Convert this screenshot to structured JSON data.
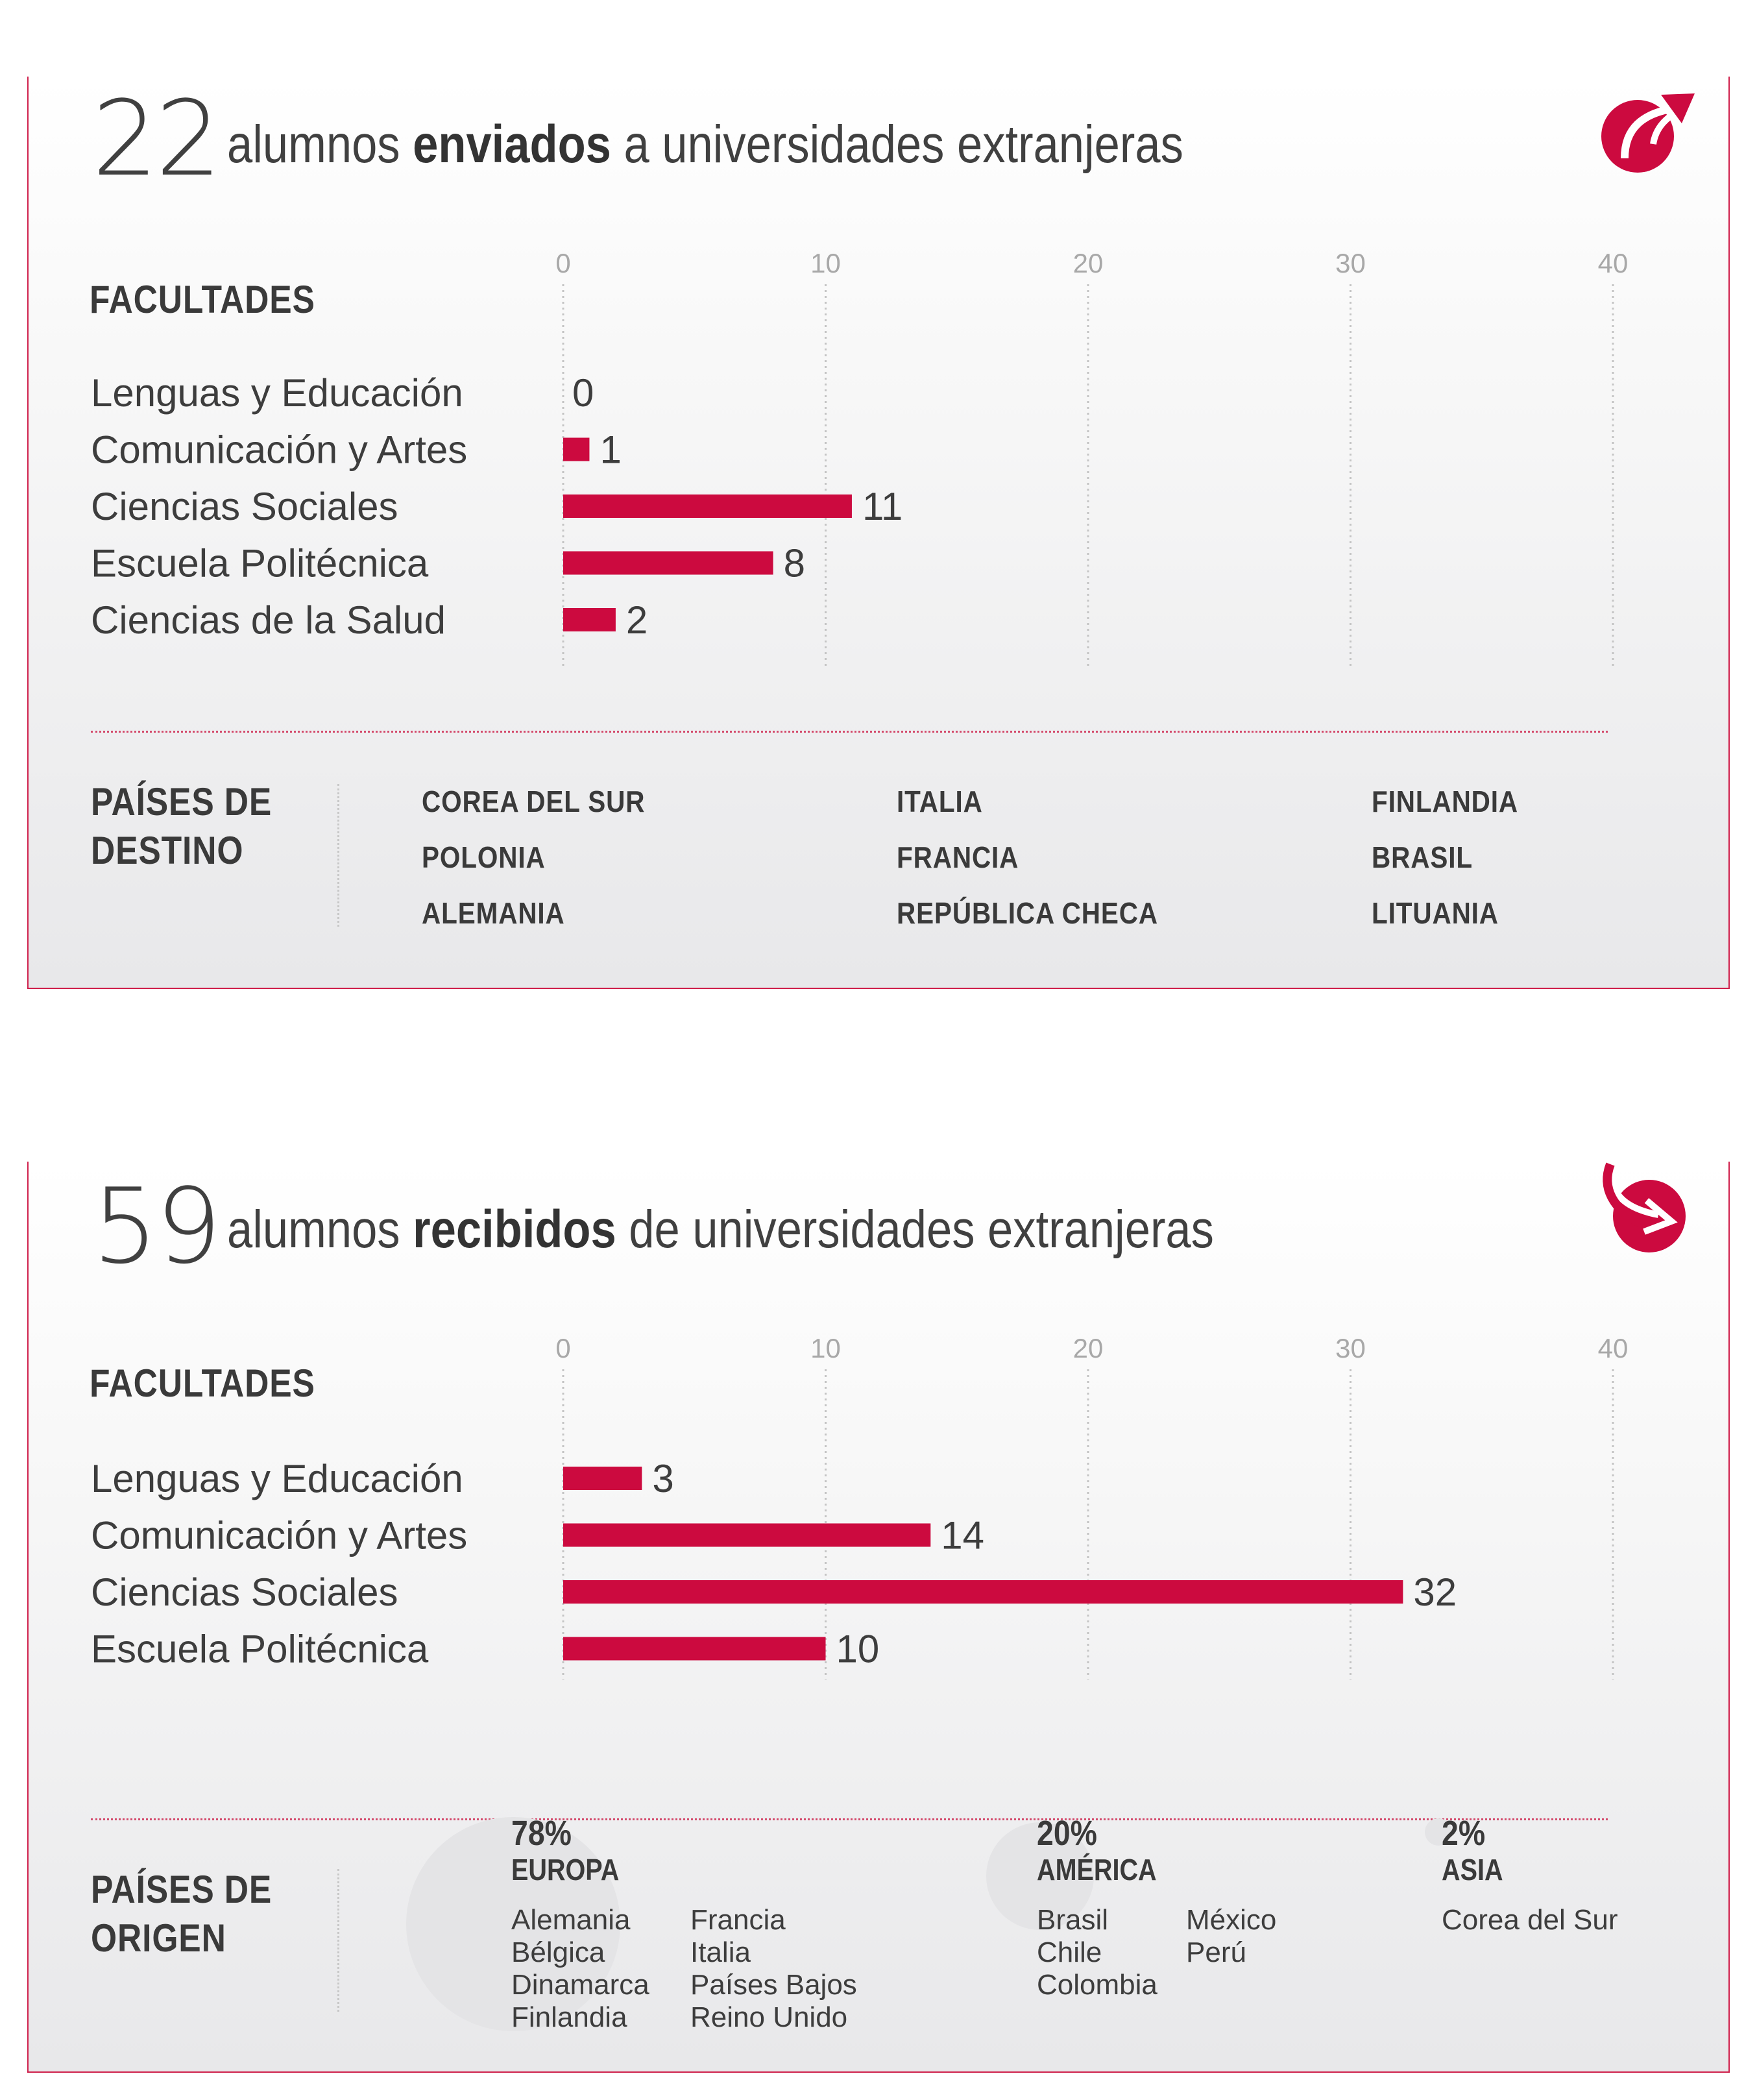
{
  "sent": {
    "number": "22",
    "title_pre": "alumnos",
    "title_bold": "enviados",
    "title_post": "a universidades extranjeras",
    "section_label": "FACULTADES",
    "countries_label_1": "PAÍSES DE",
    "countries_label_2": "DESTINO",
    "countries": [
      [
        "COREA DEL SUR",
        "POLONIA",
        "ALEMANIA"
      ],
      [
        "ITALIA",
        "FRANCIA",
        "REPÚBLICA CHECA"
      ],
      [
        "FINLANDIA",
        "BRASIL",
        "LITUANIA"
      ]
    ]
  },
  "received": {
    "number": "59",
    "title_pre": "alumnos",
    "title_bold": "recibidos",
    "title_post": "de universidades extranjeras",
    "section_label": "FACULTADES",
    "origin_label_1": "PAÍSES DE",
    "origin_label_2": "ORIGEN",
    "regions": [
      {
        "pct": "78%",
        "name": "EUROPA",
        "cols": [
          [
            "Alemania",
            "Bélgica",
            "Dinamarca",
            "Finlandia"
          ],
          [
            "Francia",
            "Italia",
            "Países Bajos",
            "Reino Unido"
          ]
        ]
      },
      {
        "pct": "20%",
        "name": "AMÉRICA",
        "cols": [
          [
            "Brasil",
            "Chile",
            "Colombia"
          ],
          [
            "México",
            "Perú"
          ]
        ]
      },
      {
        "pct": "2%",
        "name": "ASIA",
        "cols": [
          [
            "Corea del Sur"
          ]
        ]
      }
    ]
  },
  "colors": {
    "accent": "#cc0a3f",
    "text": "#3d3d3d",
    "tick": "#a8a8a8"
  },
  "icons": {
    "sent": "arrow-out-icon",
    "received": "arrow-in-icon"
  },
  "chart_data": [
    {
      "type": "bar",
      "orientation": "horizontal",
      "categories": [
        "Lenguas y Educación",
        "Comunicación y Artes",
        "Ciencias Sociales",
        "Escuela Politécnica",
        "Ciencias de la Salud"
      ],
      "values": [
        0,
        1,
        11,
        8,
        2
      ],
      "xticks": [
        0,
        10,
        20,
        30,
        40
      ],
      "xlim": [
        0,
        40
      ],
      "grid": "vertical dotted"
    },
    {
      "type": "bar",
      "orientation": "horizontal",
      "categories": [
        "Lenguas y Educación",
        "Comunicación y Artes",
        "Ciencias Sociales",
        "Escuela Politécnica"
      ],
      "values": [
        3,
        14,
        32,
        10
      ],
      "xticks": [
        0,
        10,
        20,
        30,
        40
      ],
      "xlim": [
        0,
        40
      ],
      "grid": "vertical dotted"
    }
  ]
}
